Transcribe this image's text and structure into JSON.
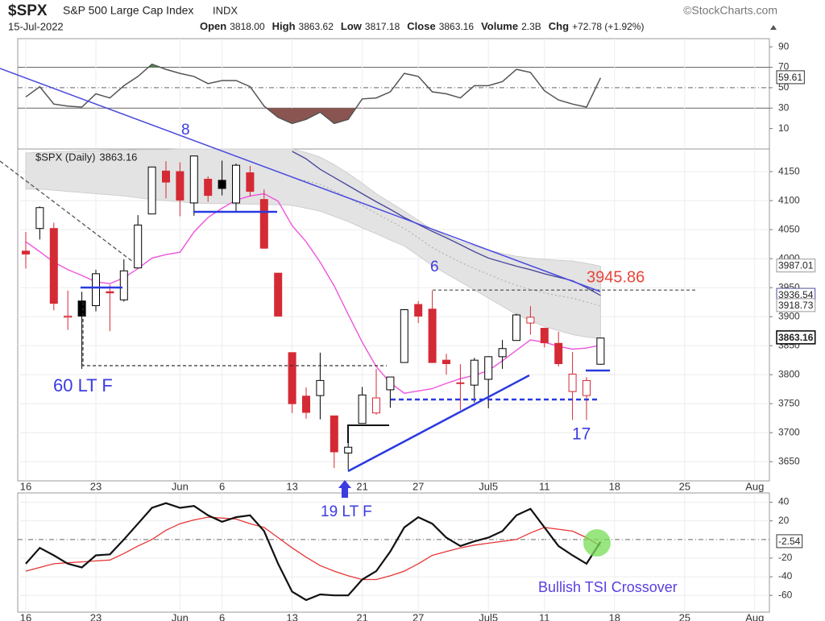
{
  "header": {
    "symbol": "$SPX",
    "name": "S&P 500 Large Cap Index",
    "exchange": "INDX",
    "credit": "©StockCharts.com",
    "date": "15-Jul-2022",
    "stats": [
      {
        "label": "Open",
        "value": "3818.00"
      },
      {
        "label": "High",
        "value": "3863.62"
      },
      {
        "label": "Low",
        "value": "3817.18"
      },
      {
        "label": "Close",
        "value": "3863.16"
      },
      {
        "label": "Volume",
        "value": "2.3B"
      },
      {
        "label": "Chg",
        "value": "+72.78 (+1.92%)"
      }
    ]
  },
  "chart_data": [
    {
      "type": "line",
      "values": [
        41,
        51,
        34,
        32,
        31,
        44,
        40,
        52,
        61,
        73,
        68,
        64,
        61,
        54,
        57,
        57,
        51,
        32,
        21,
        15,
        19,
        26,
        15,
        19,
        39,
        40,
        46,
        64,
        61,
        46,
        44,
        40,
        52,
        52,
        56,
        68,
        65,
        47,
        38,
        34,
        31,
        59.61,
        null,
        null,
        null,
        null,
        null,
        null,
        null,
        null,
        null,
        null,
        null
      ],
      "color": "#555555",
      "overbought_color": "#4f8a4f",
      "oversold_color": "#8a5550",
      "ylim": [
        -10,
        98
      ],
      "yticks": [
        10,
        30,
        50,
        70,
        90
      ],
      "hlines": [
        30,
        50,
        70
      ],
      "hline_styles": [
        "solid",
        "dashdot",
        "solid"
      ]
    },
    {
      "type": "candlestick",
      "legend": "$SPX (Daily)",
      "categories": [
        "16",
        null,
        null,
        null,
        null,
        "23",
        null,
        null,
        null,
        null,
        null,
        "Jun",
        null,
        null,
        "6",
        null,
        null,
        null,
        null,
        "13",
        null,
        null,
        null,
        null,
        "21",
        null,
        null,
        null,
        "27",
        null,
        null,
        null,
        null,
        "Jul5",
        null,
        null,
        null,
        "11",
        null,
        null,
        null,
        null,
        "18",
        null,
        null,
        null,
        null,
        "25",
        null,
        null,
        null,
        null,
        "Aug"
      ],
      "open": [
        4013,
        4052,
        4052,
        3899,
        3927,
        3919,
        3943,
        3929,
        3984,
        4077,
        4151,
        4150,
        4096,
        4137,
        4135,
        4096,
        4148,
        4102,
        3975,
        3838,
        3763,
        3764,
        3729,
        3665,
        3716,
        3734,
        3774,
        3821,
        3921,
        3913,
        3825,
        3786,
        3782,
        3792,
        3831,
        3859,
        3889,
        3880,
        3854,
        3771,
        3764,
        3818,
        null,
        null,
        null,
        null,
        null,
        null,
        null,
        null,
        null,
        null,
        null
      ],
      "high": [
        4046,
        4090,
        4062,
        3945,
        3943,
        3981,
        3955,
        3999,
        4075,
        4158,
        4168,
        4166,
        4177,
        4142,
        4169,
        4164,
        4160,
        4119,
        3975,
        3838,
        3778,
        3838,
        3729,
        3707,
        3779,
        3810,
        3796,
        3913,
        3927,
        3945,
        3836,
        3818,
        3829,
        3832,
        3860,
        3905,
        3918,
        3880,
        3874,
        3839,
        3796,
        3863.62,
        null,
        null,
        null,
        null,
        null,
        null,
        null,
        null,
        null,
        null,
        null
      ],
      "low": [
        3983,
        4033,
        3911,
        3877,
        3810,
        3909,
        3875,
        3926,
        3984,
        4077,
        4104,
        4073,
        4074,
        4098,
        4109,
        4080,
        4107,
        4017,
        3901,
        3734,
        3724,
        3723,
        3639,
        3636,
        3716,
        3731,
        3743,
        3821,
        3889,
        3820,
        3800,
        3739,
        3752,
        3742,
        3810,
        3859,
        3869,
        3847,
        3814,
        3722,
        3722,
        3817.18,
        null,
        null,
        null,
        null,
        null,
        null,
        null,
        null,
        null,
        null,
        null
      ],
      "close": [
        4008,
        4088,
        3923,
        3901,
        3901,
        3974,
        3941,
        3979,
        4058,
        4158,
        4132,
        4101,
        4177,
        4109,
        4121,
        4161,
        4116,
        4018,
        3901,
        3750,
        3735,
        3790,
        3667,
        3675,
        3765,
        3760,
        3796,
        3912,
        3901,
        3821,
        3819,
        3785,
        3825,
        3831,
        3845,
        3903,
        3899,
        3855,
        3819,
        3801,
        3790,
        3863.16,
        null,
        null,
        null,
        null,
        null,
        null,
        null,
        null,
        null,
        null,
        null
      ],
      "up_color": "#000000",
      "down_color": "#d42a35",
      "band": {
        "color": "#e3e3e3",
        "upper": [
          4182,
          4183,
          4184,
          4185,
          4186,
          4186,
          4187,
          4187,
          4188,
          4188,
          4188,
          4189,
          4189,
          4189,
          4189,
          4189,
          4189,
          4189,
          4189,
          4189,
          4183,
          4175,
          4162,
          4147,
          4130,
          4112,
          4097,
          4082,
          4066,
          4050,
          4039,
          4029,
          4022,
          4015,
          4009,
          4004,
          4001,
          3999,
          3997,
          3996,
          3992,
          3987.01,
          null,
          null,
          null,
          null,
          null,
          null,
          null,
          null,
          null,
          null,
          null
        ],
        "lower": [
          4120,
          4120,
          4118,
          4116,
          4114,
          4112,
          4110,
          4108,
          4105,
          4102,
          4100,
          4098,
          4096,
          4095,
          4095,
          4094,
          4094,
          4093,
          4093,
          4092,
          4087,
          4082,
          4073,
          4064,
          4053,
          4043,
          4032,
          4022,
          4005,
          3988,
          3974,
          3960,
          3946,
          3932,
          3918,
          3904,
          3893,
          3883,
          3876,
          3869,
          3865,
          3862,
          null,
          null,
          null,
          null,
          null,
          null,
          null,
          null,
          null,
          null,
          null
        ]
      },
      "overlays": [
        {
          "color": "#aaaaaa",
          "style": "dotted",
          "values": [
            null,
            null,
            null,
            null,
            null,
            null,
            null,
            null,
            null,
            null,
            null,
            null,
            null,
            null,
            null,
            null,
            null,
            null,
            null,
            4140,
            4134,
            4128,
            4117,
            4105,
            4092,
            4078,
            4065,
            4052,
            4036,
            4019,
            4006,
            3994,
            3983,
            3973,
            3963,
            3954,
            3947,
            3941,
            3936,
            3932,
            3925,
            3918.73,
            null,
            null,
            null,
            null,
            null,
            null,
            null,
            null,
            null,
            null,
            null
          ]
        },
        {
          "color": "#4b4b9c",
          "style": "solid",
          "values": [
            null,
            null,
            null,
            null,
            null,
            null,
            null,
            null,
            null,
            null,
            null,
            null,
            null,
            null,
            null,
            null,
            null,
            null,
            null,
            4185,
            4172,
            4154,
            4140,
            4126,
            4112,
            4098,
            4085,
            4071,
            4059,
            4047,
            4036,
            4024,
            4012,
            4001,
            3994,
            3987,
            3981,
            3974,
            3968,
            3962,
            3950,
            3936.54,
            null,
            null,
            null,
            null,
            null,
            null,
            null,
            null,
            null,
            null,
            null
          ]
        },
        {
          "color": "#ee55dd",
          "style": "solid",
          "values": [
            4029,
            4012,
            3994,
            3981,
            3971,
            3960,
            3957,
            3967,
            3983,
            4001,
            4007,
            4011,
            4046,
            4071,
            4087,
            4101,
            4108,
            4112,
            4099,
            4057,
            4029,
            3994,
            3953,
            3904,
            3856,
            3814,
            3786,
            3768,
            3772,
            3776,
            3785,
            3793,
            3799,
            3807,
            3824,
            3842,
            3860,
            3856,
            3849,
            3844,
            3846,
            3851,
            null,
            null,
            null,
            null,
            null,
            null,
            null,
            null,
            null,
            null,
            null
          ]
        }
      ],
      "level": 3945.86,
      "level_color": "#e8453a",
      "annotation_color": "#3b3be0",
      "annotations": [
        "8",
        "6",
        "60 LT F",
        "17",
        "19 LT F"
      ],
      "ylim": [
        3617,
        4189
      ],
      "yticks": [
        3650,
        3700,
        3750,
        3800,
        3850,
        3900,
        3950,
        4000,
        4050,
        4100,
        4150
      ],
      "grid": true
    },
    {
      "type": "line",
      "categories": [
        "16",
        null,
        null,
        null,
        null,
        "23",
        null,
        null,
        null,
        null,
        null,
        "Jun",
        null,
        null,
        "6",
        null,
        null,
        null,
        null,
        "13",
        null,
        null,
        null,
        null,
        "21",
        null,
        null,
        null,
        "27",
        null,
        null,
        null,
        null,
        "Jul5",
        null,
        null,
        null,
        "11",
        null,
        null,
        null,
        null,
        "18",
        null,
        null,
        null,
        null,
        "25",
        null,
        null,
        null,
        null,
        "Aug"
      ],
      "series": [
        {
          "color": "#111111",
          "values": [
            -26,
            -9,
            -17,
            -26,
            -30,
            -17,
            -16,
            0,
            17,
            34,
            39,
            34,
            36,
            26,
            19,
            24,
            26,
            9,
            -26,
            -56,
            -65,
            -59,
            -60,
            -60,
            -43,
            -34,
            -13,
            13,
            24,
            17,
            2,
            -7,
            -2,
            2,
            9,
            26,
            33,
            13,
            -7,
            -17,
            -26,
            -2.54,
            null,
            null,
            null,
            null,
            null,
            null,
            null,
            null,
            null,
            null,
            null
          ]
        },
        {
          "color": "#e83535",
          "values": [
            -34,
            -30,
            -26,
            -25,
            -24,
            -23,
            -22,
            -15,
            -7,
            0,
            10,
            17,
            21,
            24,
            23,
            22,
            17,
            13,
            2,
            -9,
            -19,
            -28,
            -34,
            -39,
            -43,
            -43,
            -39,
            -34,
            -26,
            -17,
            -13,
            -9,
            -6,
            -4,
            -2,
            0,
            7,
            13,
            11,
            9,
            2,
            -7,
            null,
            null,
            null,
            null,
            null,
            null,
            null,
            null,
            null,
            null,
            null
          ]
        }
      ],
      "annotations": [
        "Bullish TSI Crossover"
      ],
      "annotation_color": "#5a3fe0",
      "ylim": [
        -78,
        50
      ],
      "yticks": [
        -60,
        -40,
        -20,
        20,
        40
      ],
      "hlines": [
        0
      ],
      "hline_styles": [
        "dashdot"
      ],
      "grid": true
    }
  ]
}
